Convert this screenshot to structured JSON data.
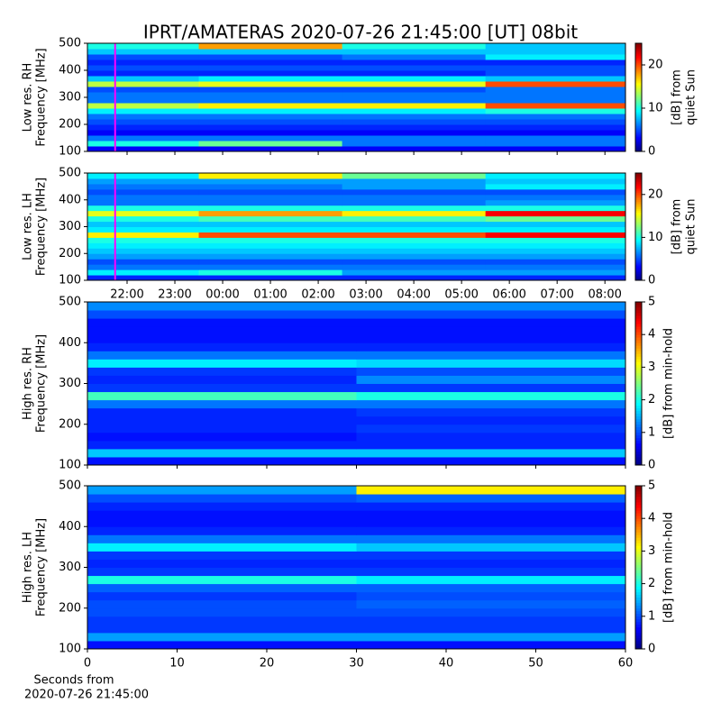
{
  "title": "IPRT/AMATERAS 2020-07-26 21:45:00 [UT]   08bit",
  "chart_data": [
    {
      "type": "heatmap",
      "ylabel": [
        "Low res. RH",
        "Frequency [MHz]"
      ],
      "xlim": [
        21.17,
        32.43
      ],
      "xticks": [
        22,
        23,
        24,
        25,
        26,
        27,
        28,
        29,
        30,
        31,
        32
      ],
      "show_xticklabels": false,
      "ylim": [
        100,
        500
      ],
      "yticks": [
        100,
        200,
        300,
        400,
        500
      ],
      "x_edges": [
        21.17,
        23.5,
        26.5,
        29.5,
        32.43
      ],
      "y_edges": [
        100,
        120,
        140,
        160,
        180,
        200,
        220,
        240,
        260,
        280,
        300,
        320,
        340,
        360,
        380,
        400,
        420,
        440,
        460,
        480,
        500
      ],
      "z": [
        [
          3,
          3,
          3,
          3
        ],
        [
          10,
          12,
          6,
          6
        ],
        [
          6,
          6,
          6,
          6
        ],
        [
          3,
          3,
          3,
          3
        ],
        [
          4,
          4,
          4,
          4
        ],
        [
          5,
          5,
          5,
          5
        ],
        [
          6,
          6,
          6,
          6
        ],
        [
          9,
          9,
          9,
          10
        ],
        [
          14,
          16,
          16,
          20
        ],
        [
          6,
          6,
          6,
          6
        ],
        [
          6,
          6,
          6,
          6
        ],
        [
          5,
          5,
          5,
          6
        ],
        [
          14,
          15,
          15,
          20
        ],
        [
          8,
          9,
          9,
          8
        ],
        [
          4,
          4,
          4,
          5
        ],
        [
          5,
          5,
          5,
          5
        ],
        [
          4,
          4,
          4,
          4
        ],
        [
          5,
          5,
          6,
          9
        ],
        [
          8,
          8,
          8,
          8
        ],
        [
          10,
          18,
          10,
          8
        ]
      ],
      "colormap": "jet",
      "clim": [
        0,
        25
      ],
      "cticks": [
        0,
        10,
        20
      ],
      "clabel": [
        "[dB] from",
        "quiet Sun"
      ],
      "marker": {
        "x": 21.75,
        "color": "#ff00ff"
      }
    },
    {
      "type": "heatmap",
      "ylabel": [
        "Low res. LH",
        "Frequency [MHz]"
      ],
      "xlim": [
        21.17,
        32.43
      ],
      "xticks": [
        {
          "value": 22,
          "label": "22:00"
        },
        {
          "value": 23,
          "label": "23:00"
        },
        {
          "value": 24,
          "label": "00:00"
        },
        {
          "value": 25,
          "label": "01:00"
        },
        {
          "value": 26,
          "label": "02:00"
        },
        {
          "value": 27,
          "label": "03:00"
        },
        {
          "value": 28,
          "label": "04:00"
        },
        {
          "value": 29,
          "label": "05:00"
        },
        {
          "value": 30,
          "label": "06:00"
        },
        {
          "value": 31,
          "label": "07:00"
        },
        {
          "value": 32,
          "label": "08:00"
        }
      ],
      "ylim": [
        100,
        500
      ],
      "yticks": [
        100,
        200,
        300,
        400,
        500
      ],
      "x_edges": [
        21.17,
        23.5,
        26.5,
        29.5,
        32.43
      ],
      "y_edges": [
        100,
        120,
        140,
        160,
        180,
        200,
        220,
        240,
        260,
        280,
        300,
        320,
        340,
        360,
        380,
        400,
        420,
        440,
        460,
        480,
        500
      ],
      "z": [
        [
          4,
          4,
          4,
          4
        ],
        [
          9,
          10,
          7,
          7
        ],
        [
          6,
          6,
          6,
          6
        ],
        [
          5,
          5,
          5,
          5
        ],
        [
          7,
          7,
          7,
          7
        ],
        [
          8,
          8,
          8,
          8
        ],
        [
          9,
          9,
          9,
          9
        ],
        [
          10,
          10,
          10,
          10
        ],
        [
          16,
          20,
          20,
          22
        ],
        [
          9,
          9,
          9,
          9
        ],
        [
          8,
          8,
          8,
          8
        ],
        [
          10,
          11,
          11,
          12
        ],
        [
          15,
          18,
          16,
          22
        ],
        [
          10,
          10,
          10,
          10
        ],
        [
          6,
          6,
          6,
          7
        ],
        [
          6,
          6,
          6,
          6
        ],
        [
          5,
          5,
          5,
          5
        ],
        [
          6,
          6,
          7,
          9
        ],
        [
          7,
          7,
          7,
          8
        ],
        [
          9,
          16,
          12,
          9
        ]
      ],
      "colormap": "jet",
      "clim": [
        0,
        25
      ],
      "cticks": [
        0,
        10,
        20
      ],
      "clabel": [
        "[dB] from",
        "quiet Sun"
      ],
      "marker": {
        "x": 21.75,
        "color": "#ff00ff"
      }
    },
    {
      "type": "heatmap",
      "ylabel": [
        "High res. RH",
        "Frequency [MHz]"
      ],
      "xlim": [
        0,
        60
      ],
      "xticks": [
        0,
        10,
        20,
        30,
        40,
        50,
        60
      ],
      "show_xticklabels": false,
      "ylim": [
        100,
        500
      ],
      "yticks": [
        100,
        200,
        300,
        400,
        500
      ],
      "x_edges": [
        0,
        30,
        60
      ],
      "y_edges": [
        100,
        120,
        140,
        160,
        180,
        200,
        220,
        240,
        260,
        280,
        300,
        320,
        340,
        360,
        380,
        400,
        420,
        440,
        460,
        480,
        500
      ],
      "z": [
        [
          0.7,
          0.7
        ],
        [
          1.6,
          1.6
        ],
        [
          0.8,
          0.8
        ],
        [
          0.7,
          0.8
        ],
        [
          0.8,
          0.9
        ],
        [
          0.8,
          0.8
        ],
        [
          0.8,
          0.9
        ],
        [
          1.2,
          1.2
        ],
        [
          2.2,
          2.0
        ],
        [
          0.9,
          0.9
        ],
        [
          0.8,
          1.3
        ],
        [
          0.9,
          1.0
        ],
        [
          1.8,
          1.7
        ],
        [
          1.2,
          1.2
        ],
        [
          0.8,
          0.8
        ],
        [
          0.7,
          0.7
        ],
        [
          0.7,
          0.7
        ],
        [
          0.7,
          0.7
        ],
        [
          1.0,
          1.0
        ],
        [
          1.3,
          1.3
        ]
      ],
      "colormap": "jet",
      "clim": [
        0,
        5
      ],
      "cticks": [
        0,
        1,
        2,
        3,
        4,
        5
      ],
      "clabel": [
        "[dB] from min-hold"
      ]
    },
    {
      "type": "heatmap",
      "ylabel": [
        "High res. LH",
        "Frequency [MHz]"
      ],
      "xlim": [
        0,
        60
      ],
      "xticks": [
        0,
        10,
        20,
        30,
        40,
        50,
        60
      ],
      "xlabel": [
        "Seconds from",
        "2020-07-26 21:45:00"
      ],
      "ylim": [
        100,
        500
      ],
      "yticks": [
        100,
        200,
        300,
        400,
        500
      ],
      "x_edges": [
        0,
        30,
        60
      ],
      "y_edges": [
        100,
        120,
        140,
        160,
        180,
        200,
        220,
        240,
        260,
        280,
        300,
        320,
        340,
        360,
        380,
        400,
        420,
        440,
        460,
        480,
        500
      ],
      "z": [
        [
          0.7,
          0.7
        ],
        [
          1.4,
          1.4
        ],
        [
          0.9,
          0.9
        ],
        [
          0.9,
          0.9
        ],
        [
          1.0,
          1.0
        ],
        [
          1.0,
          1.1
        ],
        [
          0.9,
          1.0
        ],
        [
          1.1,
          1.1
        ],
        [
          2.0,
          1.8
        ],
        [
          0.9,
          0.9
        ],
        [
          0.8,
          0.8
        ],
        [
          0.9,
          0.9
        ],
        [
          1.8,
          1.6
        ],
        [
          1.2,
          1.2
        ],
        [
          0.8,
          0.8
        ],
        [
          0.7,
          0.7
        ],
        [
          0.7,
          0.7
        ],
        [
          0.8,
          0.8
        ],
        [
          1.0,
          1.1
        ],
        [
          1.4,
          3.2
        ]
      ],
      "colormap": "jet",
      "clim": [
        0,
        5
      ],
      "cticks": [
        0,
        1,
        2,
        3,
        4,
        5
      ],
      "clabel": [
        "[dB] from min-hold"
      ]
    }
  ]
}
